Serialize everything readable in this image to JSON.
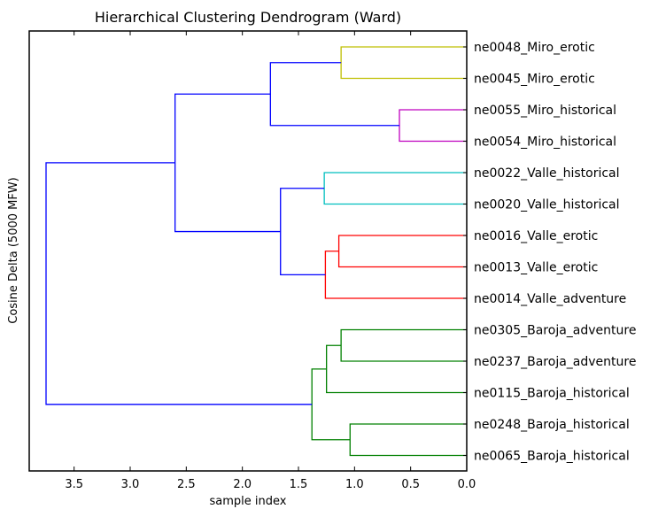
{
  "chart_data": {
    "type": "dendrogram",
    "title": "Hierarchical Clustering Dendrogram (Ward)",
    "xlabel": "sample index",
    "ylabel": "Cosine Delta (5000 MFW)",
    "xlim": [
      3.9,
      0.0
    ],
    "xticks": [
      3.5,
      3.0,
      2.5,
      2.0,
      1.5,
      1.0,
      0.5,
      0.0
    ],
    "xtick_labels": [
      "3.5",
      "3.0",
      "2.5",
      "2.0",
      "1.5",
      "1.0",
      "0.5",
      "0.0"
    ],
    "orientation": "left",
    "grid": false,
    "leaves": [
      "ne0048_Miro_erotic",
      "ne0045_Miro_erotic",
      "ne0055_Miro_historical",
      "ne0054_Miro_historical",
      "ne0022_Valle_historical",
      "ne0020_Valle_historical",
      "ne0016_Valle_erotic",
      "ne0013_Valle_erotic",
      "ne0014_Valle_adventure",
      "ne0305_Baroja_adventure",
      "ne0237_Baroja_adventure",
      "ne0115_Baroja_historical",
      "ne0248_Baroja_historical",
      "ne0065_Baroja_historical"
    ],
    "merges": [
      {
        "id": "m1",
        "left": "L0",
        "right": "L1",
        "height": 1.12,
        "color": "#bfbf00"
      },
      {
        "id": "m2",
        "left": "L2",
        "right": "L3",
        "height": 0.6,
        "color": "#bf00bf"
      },
      {
        "id": "m3",
        "left": "m1",
        "right": "m2",
        "height": 1.75,
        "color": "#0000ff"
      },
      {
        "id": "m4",
        "left": "L4",
        "right": "L5",
        "height": 1.27,
        "color": "#00bfbf"
      },
      {
        "id": "m5",
        "left": "L6",
        "right": "L7",
        "height": 1.14,
        "color": "#ff0000"
      },
      {
        "id": "m6",
        "left": "m5",
        "right": "L8",
        "height": 1.26,
        "color": "#ff0000"
      },
      {
        "id": "m7",
        "left": "m4",
        "right": "m6",
        "height": 1.66,
        "color": "#0000ff"
      },
      {
        "id": "m8",
        "left": "m3",
        "right": "m7",
        "height": 2.6,
        "color": "#0000ff"
      },
      {
        "id": "m9",
        "left": "L9",
        "right": "L10",
        "height": 1.12,
        "color": "#008000"
      },
      {
        "id": "m10",
        "left": "m9",
        "right": "L11",
        "height": 1.25,
        "color": "#008000"
      },
      {
        "id": "m11",
        "left": "L12",
        "right": "L13",
        "height": 1.04,
        "color": "#008000"
      },
      {
        "id": "m12",
        "left": "m10",
        "right": "m11",
        "height": 1.38,
        "color": "#008000"
      },
      {
        "id": "m13",
        "left": "m8",
        "right": "m12",
        "height": 3.75,
        "color": "#0000ff"
      }
    ]
  }
}
